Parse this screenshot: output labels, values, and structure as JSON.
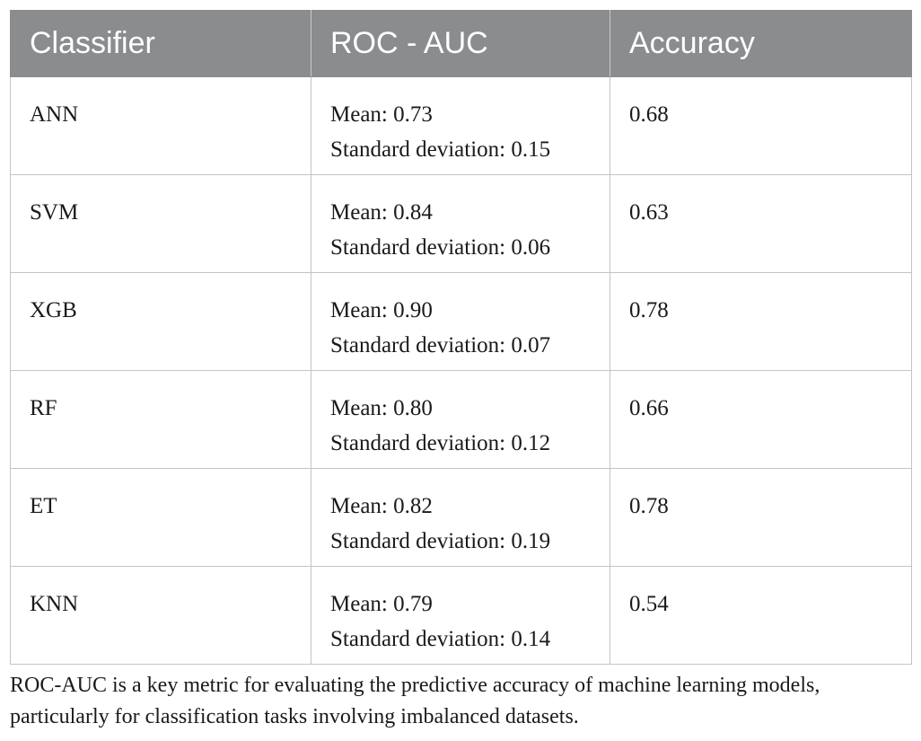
{
  "table": {
    "headers": [
      "Classifier",
      "ROC - AUC",
      "Accuracy"
    ],
    "rows": [
      {
        "classifier": "ANN",
        "mean": "Mean: 0.73",
        "sd": "Standard deviation: 0.15",
        "accuracy": "0.68"
      },
      {
        "classifier": "SVM",
        "mean": "Mean: 0.84",
        "sd": "Standard deviation: 0.06",
        "accuracy": "0.63"
      },
      {
        "classifier": "XGB",
        "mean": "Mean: 0.90",
        "sd": "Standard deviation: 0.07",
        "accuracy": "0.78"
      },
      {
        "classifier": "RF",
        "mean": "Mean: 0.80",
        "sd": "Standard deviation: 0.12",
        "accuracy": "0.66"
      },
      {
        "classifier": "ET",
        "mean": "Mean: 0.82",
        "sd": "Standard deviation: 0.19",
        "accuracy": "0.78"
      },
      {
        "classifier": "KNN",
        "mean": "Mean: 0.79",
        "sd": "Standard deviation: 0.14",
        "accuracy": "0.54"
      }
    ],
    "header_color": "#8a8c8e"
  },
  "caption": {
    "line1": "ROC-AUC is a key metric for evaluating the predictive accuracy of machine learning models,",
    "line2": "particularly for classification tasks involving imbalanced datasets."
  }
}
